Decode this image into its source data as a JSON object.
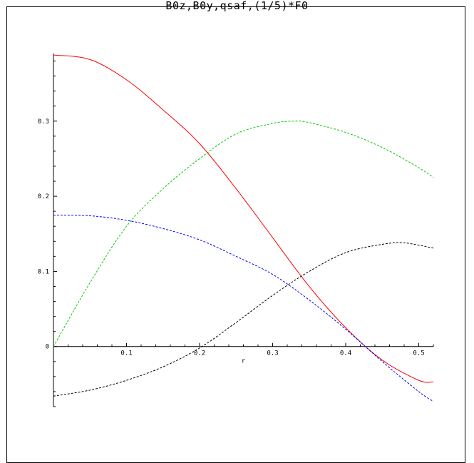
{
  "chart_data": {
    "type": "line",
    "title": "B0z,B0y,qsaf,(1/5)*F0",
    "xlabel": "r",
    "ylabel": "",
    "xlim": [
      0,
      0.52
    ],
    "ylim": [
      -0.08,
      0.39
    ],
    "x_ticks": [
      "0.1",
      "0.2",
      "0.3",
      "0.4",
      "0.5"
    ],
    "y_ticks": [
      "0",
      "0.1",
      "0.2",
      "0.3"
    ],
    "grid": false,
    "series": [
      {
        "color": "#ff0000",
        "style": "solid",
        "x": [
          0,
          0.05,
          0.1,
          0.15,
          0.2,
          0.25,
          0.3,
          0.35,
          0.4,
          0.45,
          0.5,
          0.52
        ],
        "y": [
          0.388,
          0.382,
          0.355,
          0.315,
          0.27,
          0.21,
          0.145,
          0.08,
          0.025,
          -0.018,
          -0.045,
          -0.047
        ]
      },
      {
        "color": "#00cc00",
        "style": "dashed",
        "x": [
          0,
          0.05,
          0.1,
          0.15,
          0.2,
          0.25,
          0.3,
          0.33,
          0.35,
          0.4,
          0.45,
          0.5,
          0.52
        ],
        "y": [
          0.0,
          0.085,
          0.16,
          0.21,
          0.25,
          0.283,
          0.297,
          0.3,
          0.298,
          0.285,
          0.265,
          0.238,
          0.225
        ]
      },
      {
        "color": "#0000ff",
        "style": "dashed",
        "x": [
          0,
          0.05,
          0.1,
          0.15,
          0.2,
          0.25,
          0.3,
          0.35,
          0.4,
          0.45,
          0.5,
          0.52
        ],
        "y": [
          0.175,
          0.174,
          0.168,
          0.157,
          0.142,
          0.12,
          0.096,
          0.062,
          0.023,
          -0.02,
          -0.06,
          -0.073
        ]
      },
      {
        "color": "#000000",
        "style": "dashed",
        "x": [
          0,
          0.05,
          0.1,
          0.15,
          0.2,
          0.25,
          0.3,
          0.35,
          0.4,
          0.45,
          0.48,
          0.52
        ],
        "y": [
          -0.066,
          -0.058,
          -0.045,
          -0.027,
          -0.002,
          0.032,
          0.068,
          0.1,
          0.125,
          0.136,
          0.138,
          0.131
        ]
      }
    ]
  }
}
